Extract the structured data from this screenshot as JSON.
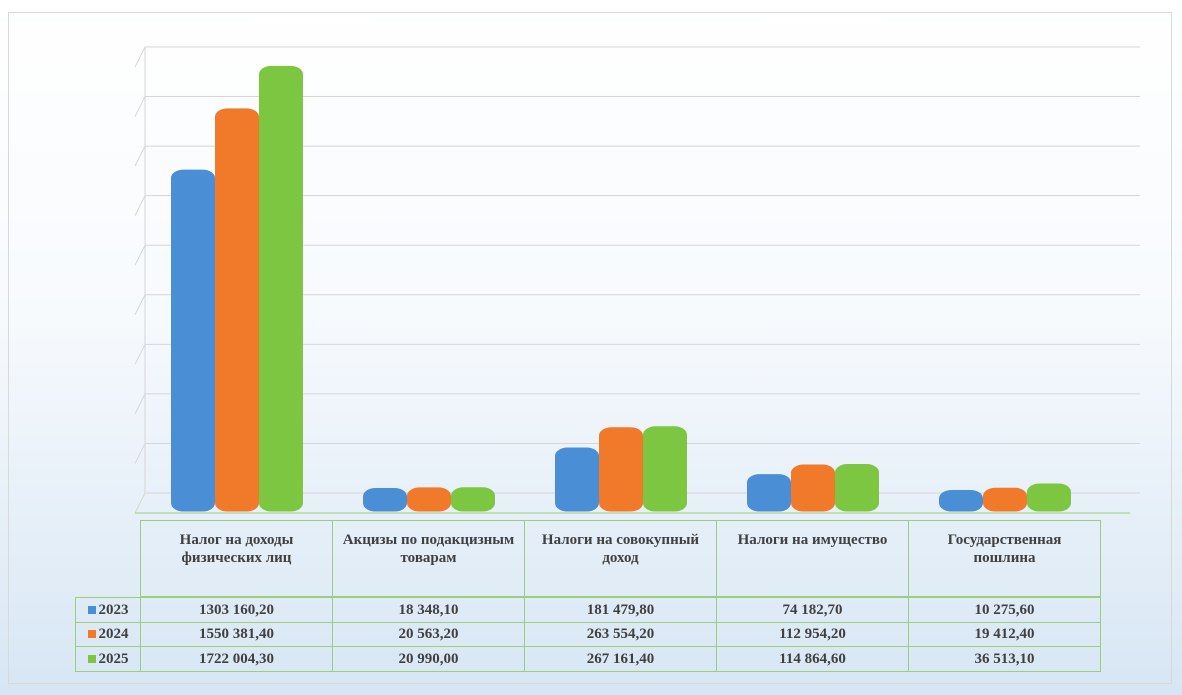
{
  "chart_data": {
    "type": "bar",
    "categories": [
      "Налог на доходы физических лиц",
      "Акцизы по подакцизным товарам",
      "Налоги на совокупный доход",
      "Налоги на имущество",
      "Государственная пошлина"
    ],
    "series": [
      {
        "name": "2023",
        "color": "#4a8fd6",
        "values": [
          1303160.2,
          18348.1,
          181479.8,
          74182.7,
          10275.6
        ],
        "value_labels": [
          "1303 160,20",
          "18 348,10",
          "181 479,80",
          "74 182,70",
          "10 275,60"
        ]
      },
      {
        "name": "2024",
        "color": "#f07a2a",
        "values": [
          1550381.4,
          20563.2,
          263554.2,
          112954.2,
          19412.4
        ],
        "value_labels": [
          "1550 381,40",
          "20 563,20",
          "263 554,20",
          "112 954,20",
          "19 412,40"
        ]
      },
      {
        "name": "2025",
        "color": "#7dc642",
        "values": [
          1722004.3,
          20990.0,
          267161.4,
          114864.6,
          36513.1
        ],
        "value_labels": [
          "1722 004,30",
          "20 990,00",
          "267 161,40",
          "114 864,60",
          "36 513,10"
        ]
      }
    ],
    "ylim": [
      0,
      1800000
    ],
    "yticks": [
      0,
      200000,
      400000,
      600000,
      800000,
      1000000,
      1200000,
      1400000,
      1600000,
      1800000
    ],
    "grid": true
  }
}
